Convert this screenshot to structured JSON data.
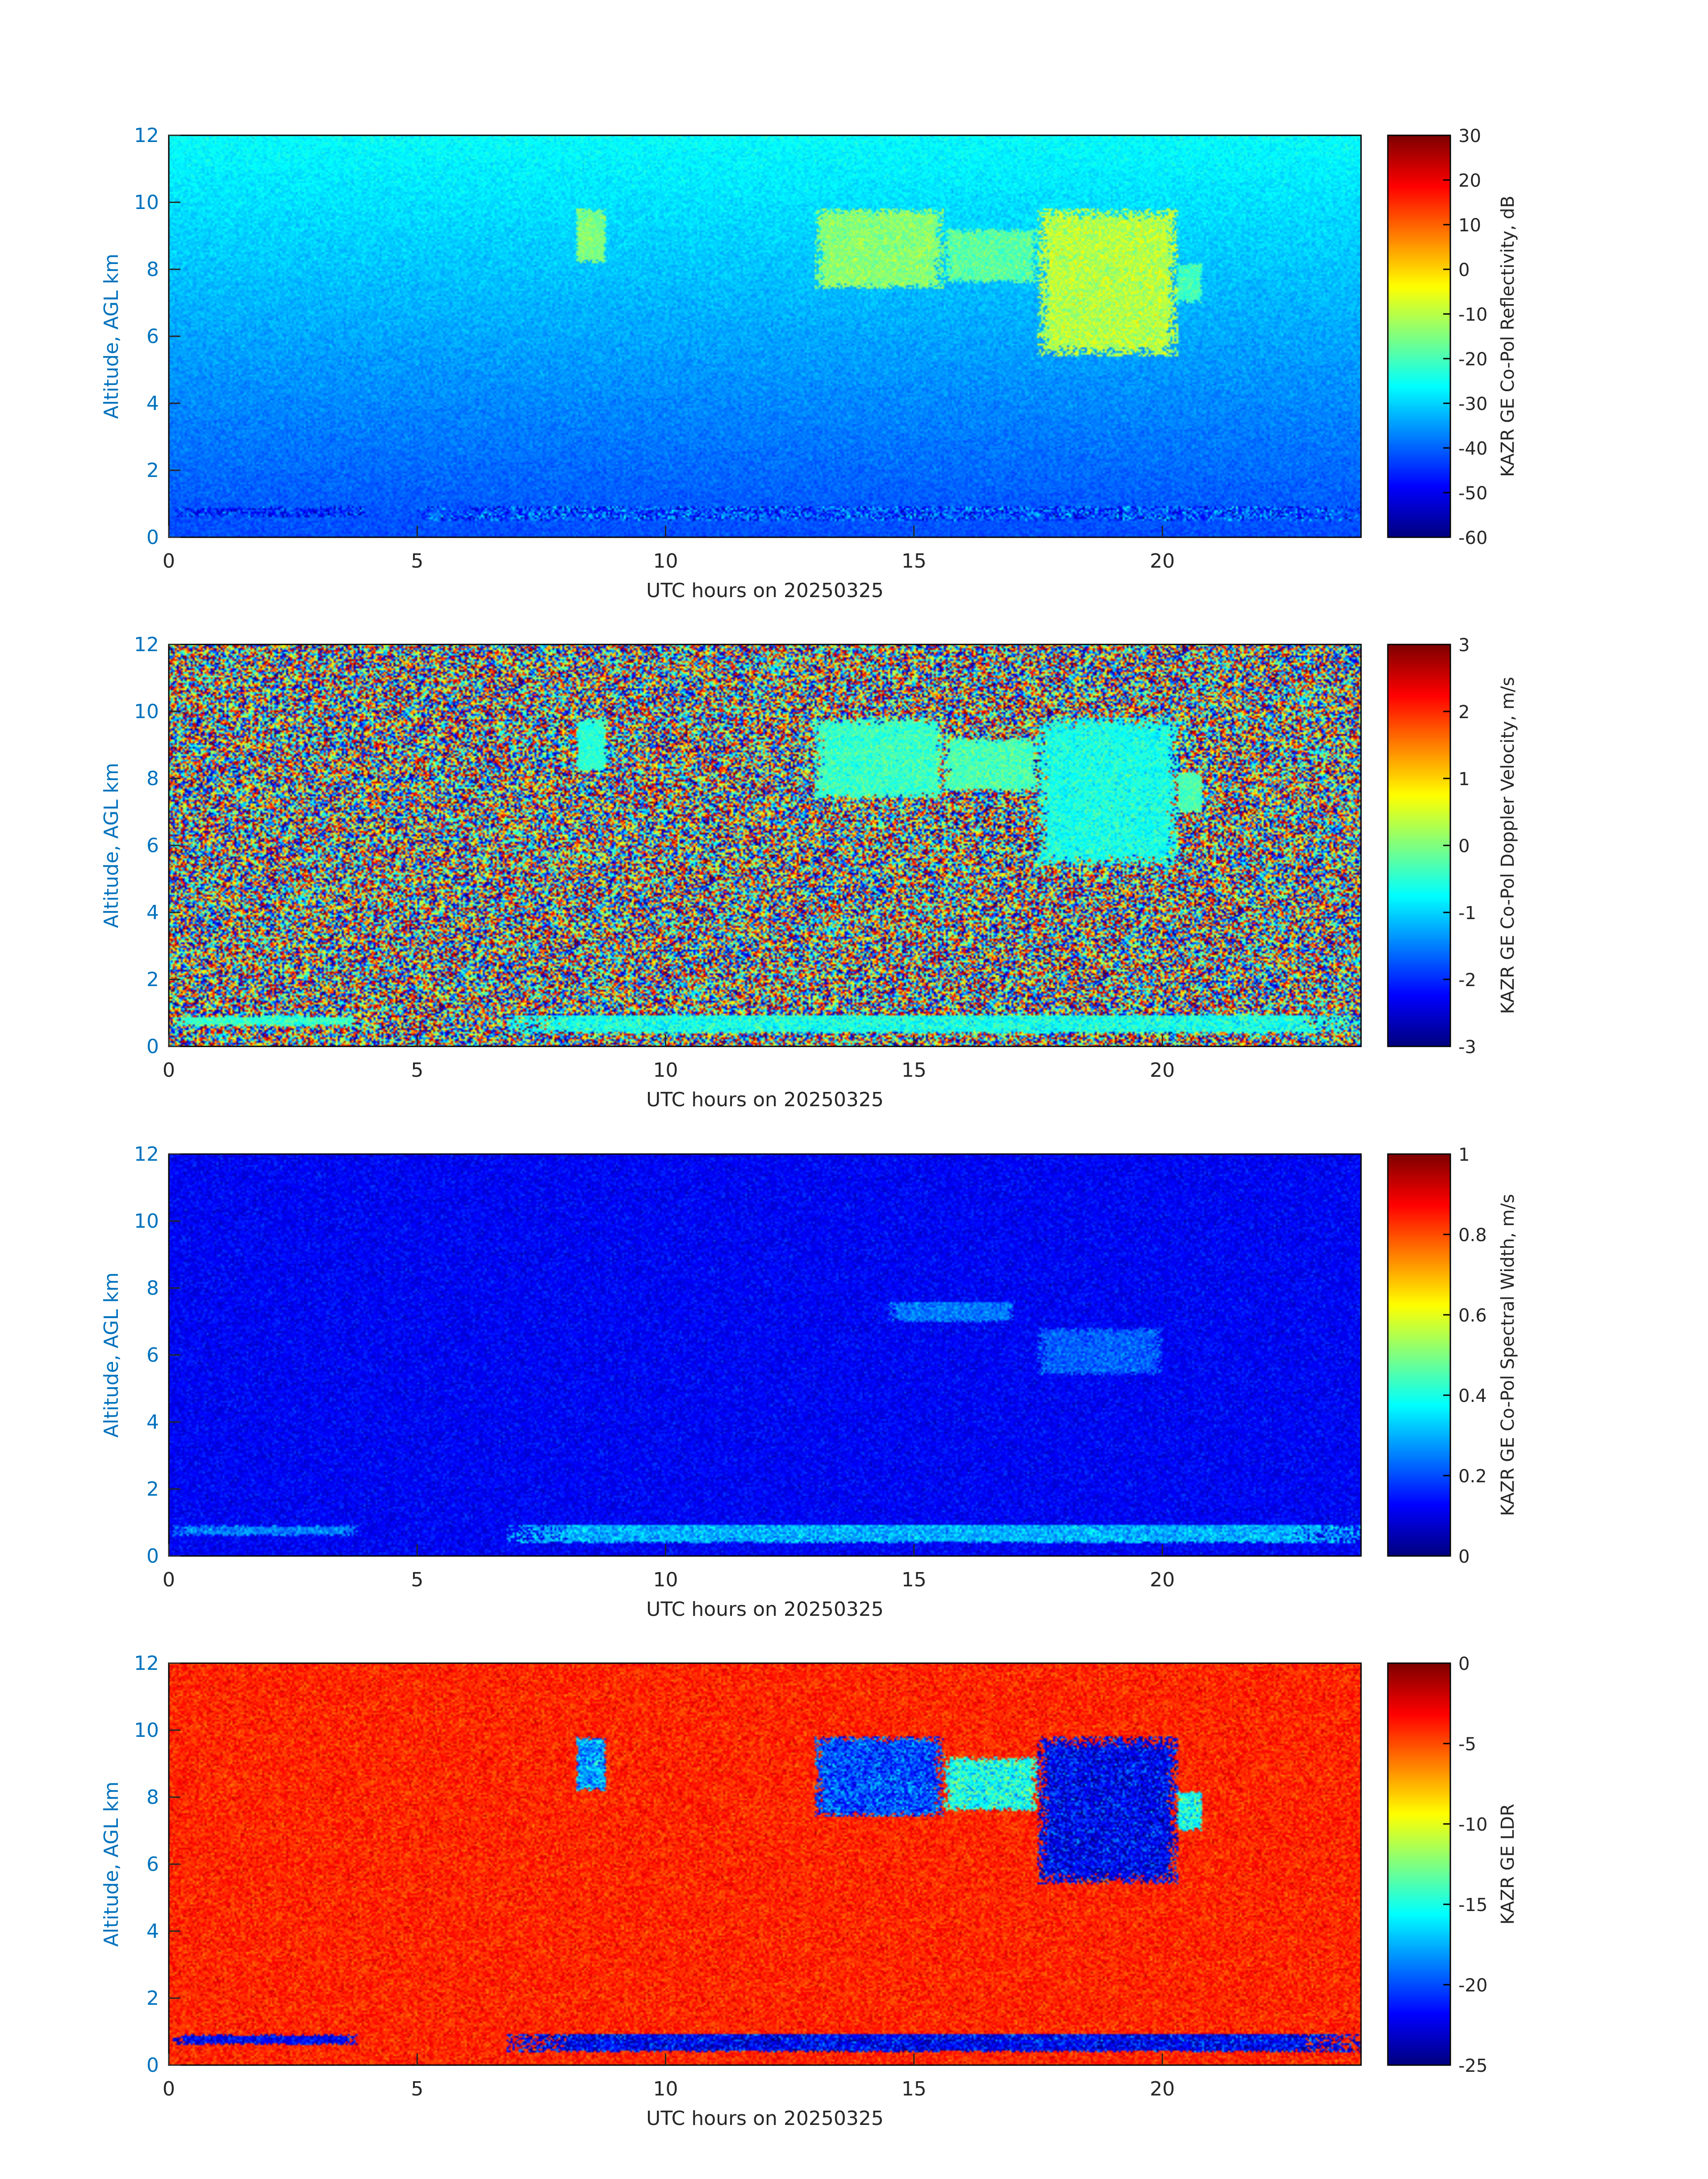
{
  "colors": {
    "axis_label": "#0072BD",
    "axis_line": "#262626",
    "frame": "#000000",
    "colormap": "jet"
  },
  "chart_data": [
    {
      "type": "heatmap",
      "xlabel": "UTC hours on 20250325",
      "ylabel": "Altitude, AGL km",
      "xlim": [
        0,
        24
      ],
      "ylim": [
        0,
        12
      ],
      "xticks": [
        0,
        5,
        10,
        15,
        20
      ],
      "yticks": [
        0,
        2,
        4,
        6,
        8,
        10,
        12
      ],
      "colorbar": {
        "label": "KAZR GE Co-Pol Reflectivity, dB",
        "range": [
          -60,
          30
        ],
        "ticks": [
          30,
          20,
          10,
          0,
          -10,
          -20,
          -30,
          -40,
          -50,
          -60
        ]
      },
      "background": {
        "mode": "gradient",
        "top": -26,
        "bottom": -42,
        "noise": 3
      },
      "features": [
        {
          "x0": 0.1,
          "x1": 4.0,
          "y0": 0.62,
          "y1": 0.9,
          "value": -45,
          "noise": 10
        },
        {
          "x0": 5.0,
          "x1": 24.0,
          "y0": 0.5,
          "y1": 0.95,
          "value": -42,
          "noise": 12
        },
        {
          "x0": 8.2,
          "x1": 8.8,
          "y0": 8.2,
          "y1": 9.8,
          "value": -15,
          "noise": 4
        },
        {
          "x0": 13.0,
          "x1": 15.6,
          "y0": 7.4,
          "y1": 9.8,
          "value": -14,
          "noise": 5
        },
        {
          "x0": 15.6,
          "x1": 17.5,
          "y0": 7.6,
          "y1": 9.2,
          "value": -18,
          "noise": 5
        },
        {
          "x0": 17.5,
          "x1": 20.3,
          "y0": 5.4,
          "y1": 9.8,
          "value": -10,
          "noise": 6
        },
        {
          "x0": 20.3,
          "x1": 20.8,
          "y0": 7.0,
          "y1": 8.2,
          "value": -20,
          "noise": 4
        }
      ]
    },
    {
      "type": "heatmap",
      "xlabel": "UTC hours on 20250325",
      "ylabel": "Altitude, AGL km",
      "xlim": [
        0,
        24
      ],
      "ylim": [
        0,
        12
      ],
      "xticks": [
        0,
        5,
        10,
        15,
        20
      ],
      "yticks": [
        0,
        2,
        4,
        6,
        8,
        10,
        12
      ],
      "colorbar": {
        "label": "KAZR GE Co-Pol Doppler Velocity, m/s",
        "range": [
          -3,
          3
        ],
        "ticks": [
          3,
          2,
          1,
          0,
          -1,
          -2,
          -3
        ]
      },
      "background": {
        "mode": "random"
      },
      "features": [
        {
          "x0": 0.1,
          "x1": 3.8,
          "y0": 0.62,
          "y1": 0.9,
          "value": -0.4,
          "noise": 0.4
        },
        {
          "x0": 6.8,
          "x1": 24.0,
          "y0": 0.4,
          "y1": 0.95,
          "value": -0.6,
          "noise": 0.5
        },
        {
          "x0": 8.2,
          "x1": 8.8,
          "y0": 8.2,
          "y1": 9.8,
          "value": -0.5,
          "noise": 0.3
        },
        {
          "x0": 13.0,
          "x1": 15.6,
          "y0": 7.4,
          "y1": 9.8,
          "value": -0.4,
          "noise": 0.4
        },
        {
          "x0": 15.6,
          "x1": 17.5,
          "y0": 7.6,
          "y1": 9.2,
          "value": -0.3,
          "noise": 0.4
        },
        {
          "x0": 17.5,
          "x1": 20.3,
          "y0": 5.4,
          "y1": 9.8,
          "value": -0.6,
          "noise": 0.4
        },
        {
          "x0": 20.3,
          "x1": 20.8,
          "y0": 7.0,
          "y1": 8.2,
          "value": -0.3,
          "noise": 0.3
        }
      ]
    },
    {
      "type": "heatmap",
      "xlabel": "UTC hours on 20250325",
      "ylabel": "Altitude, AGL km",
      "xlim": [
        0,
        24
      ],
      "ylim": [
        0,
        12
      ],
      "xticks": [
        0,
        5,
        10,
        15,
        20
      ],
      "yticks": [
        0,
        2,
        4,
        6,
        8,
        10,
        12
      ],
      "colorbar": {
        "label": "KAZR GE Co-Pol Spectral Width, m/s",
        "range": [
          0,
          1
        ],
        "ticks": [
          1,
          0.8,
          0.6,
          0.4,
          0.2,
          0
        ]
      },
      "background": {
        "mode": "noise",
        "level": 0.12,
        "noise": 0.05
      },
      "features": [
        {
          "x0": 0.1,
          "x1": 3.8,
          "y0": 0.62,
          "y1": 0.9,
          "value": 0.25,
          "noise": 0.07
        },
        {
          "x0": 6.8,
          "x1": 24.0,
          "y0": 0.4,
          "y1": 0.95,
          "value": 0.3,
          "noise": 0.08
        },
        {
          "x0": 14.5,
          "x1": 17.0,
          "y0": 7.0,
          "y1": 7.6,
          "value": 0.24,
          "noise": 0.06
        },
        {
          "x0": 17.5,
          "x1": 20.0,
          "y0": 5.4,
          "y1": 6.8,
          "value": 0.22,
          "noise": 0.06
        }
      ]
    },
    {
      "type": "heatmap",
      "xlabel": "UTC hours on 20250325",
      "ylabel": "Altitude, AGL km",
      "xlim": [
        0,
        24
      ],
      "ylim": [
        0,
        12
      ],
      "xticks": [
        0,
        5,
        10,
        15,
        20
      ],
      "yticks": [
        0,
        2,
        4,
        6,
        8,
        10,
        12
      ],
      "colorbar": {
        "label": "KAZR GE LDR",
        "range": [
          -25,
          0
        ],
        "ticks": [
          0,
          -5,
          -10,
          -15,
          -20,
          -25
        ]
      },
      "background": {
        "mode": "noise",
        "level": -4,
        "noise": 1.5
      },
      "features": [
        {
          "x0": 0.1,
          "x1": 3.8,
          "y0": 0.62,
          "y1": 0.9,
          "value": -22,
          "noise": 2
        },
        {
          "x0": 6.8,
          "x1": 24.0,
          "y0": 0.4,
          "y1": 0.95,
          "value": -22,
          "noise": 3
        },
        {
          "x0": 8.2,
          "x1": 8.8,
          "y0": 8.2,
          "y1": 9.8,
          "value": -18,
          "noise": 3
        },
        {
          "x0": 13.0,
          "x1": 15.6,
          "y0": 7.4,
          "y1": 9.8,
          "value": -20,
          "noise": 3
        },
        {
          "x0": 15.6,
          "x1": 17.5,
          "y0": 7.6,
          "y1": 9.2,
          "value": -15,
          "noise": 3
        },
        {
          "x0": 17.5,
          "x1": 20.3,
          "y0": 5.4,
          "y1": 9.8,
          "value": -22,
          "noise": 3
        },
        {
          "x0": 20.3,
          "x1": 20.8,
          "y0": 7.0,
          "y1": 8.2,
          "value": -15,
          "noise": 3
        }
      ]
    }
  ]
}
